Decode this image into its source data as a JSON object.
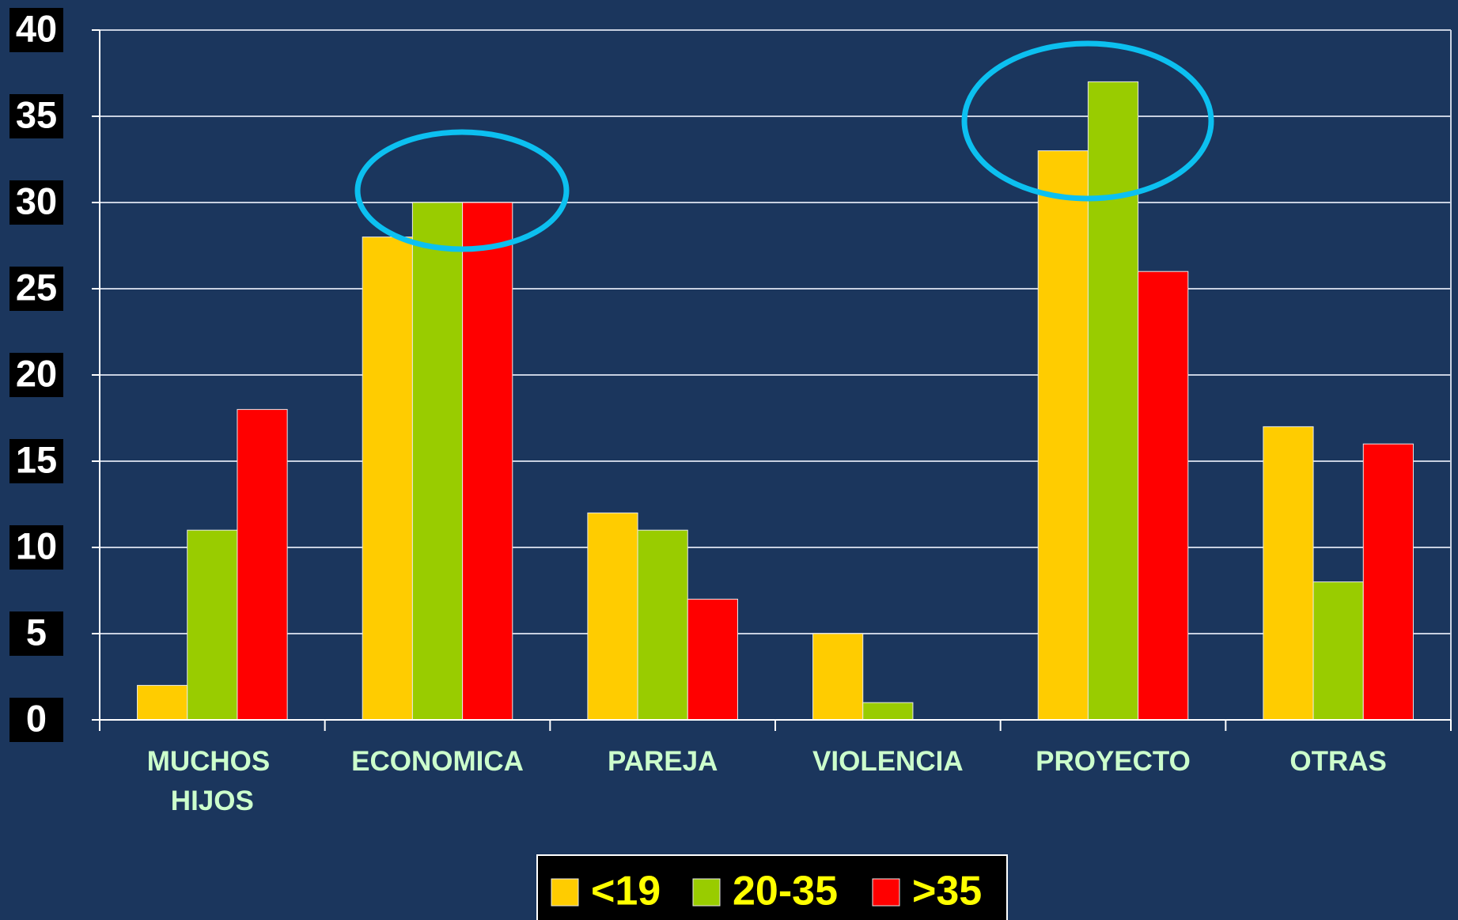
{
  "chart_data": {
    "type": "bar",
    "categories": [
      "MUCHOS HIJOS",
      "ECONOMICA",
      "PAREJA",
      "VIOLENCIA",
      "PROYECTO",
      "OTRAS"
    ],
    "series": [
      {
        "name": "<19",
        "color": "#ffcc00",
        "values": [
          2,
          28,
          12,
          5,
          33,
          17
        ]
      },
      {
        "name": "20-35",
        "color": "#99cc00",
        "values": [
          11,
          30,
          11,
          1,
          37,
          8
        ]
      },
      {
        "name": ">35",
        "color": "#ff0000",
        "values": [
          18,
          30,
          7,
          0,
          26,
          16
        ]
      }
    ],
    "ylim": [
      0,
      40
    ],
    "yticks": [
      0,
      5,
      10,
      15,
      20,
      25,
      30,
      35,
      40
    ],
    "grid": true,
    "legend": "bottom"
  }
}
